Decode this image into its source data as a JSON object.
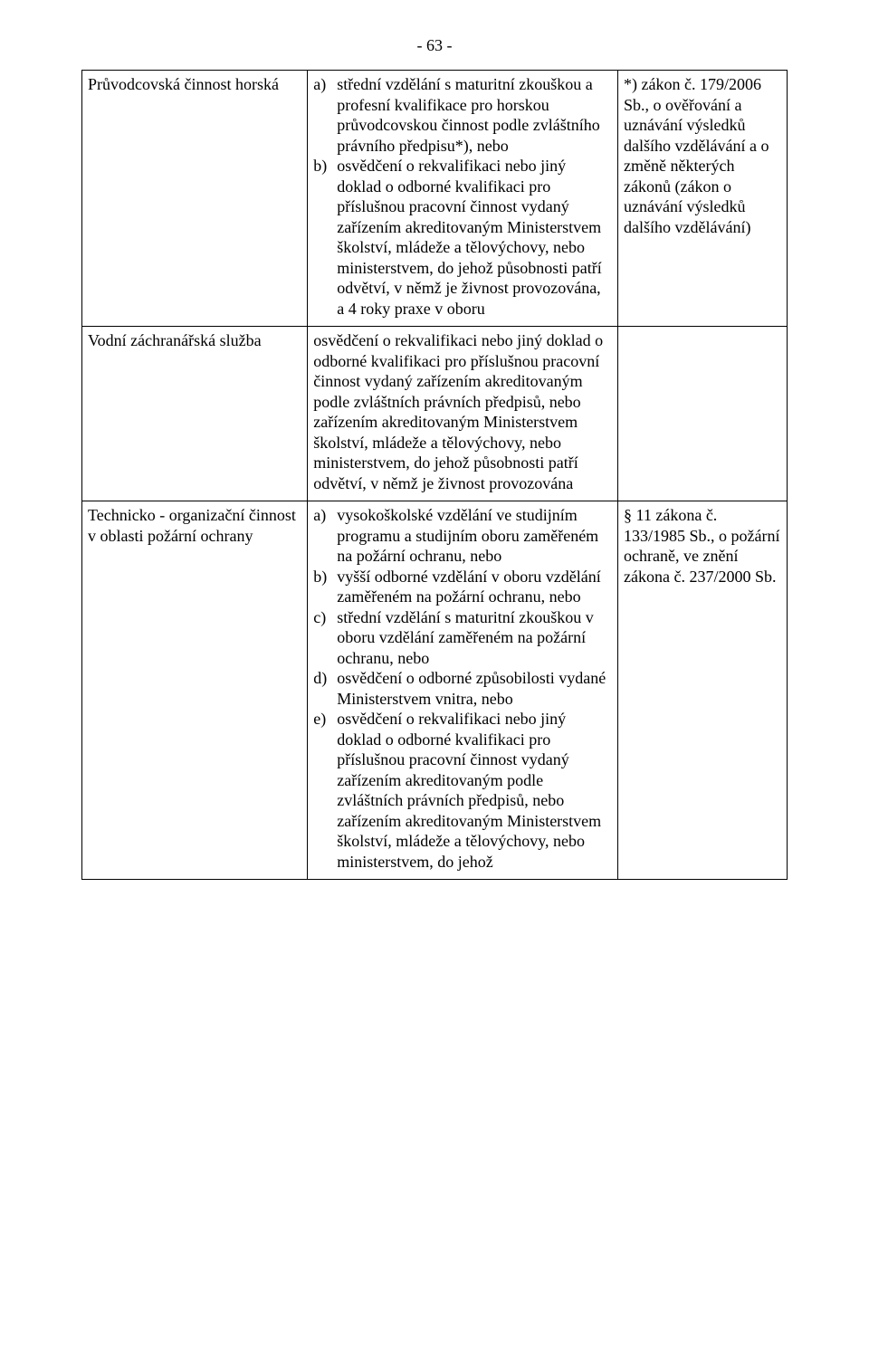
{
  "page_number": "- 63 -",
  "rows": [
    {
      "col1": "Průvodcovská činnost horská",
      "col2_type": "list",
      "col2_items": [
        {
          "marker": "a)",
          "text": "střední vzdělání s maturitní zkouškou a profesní kvalifikace pro horskou průvodcovskou činnost podle zvláštního právního předpisu*), nebo"
        },
        {
          "marker": "b)",
          "text": "osvědčení o rekvalifikaci nebo jiný doklad o odborné kvalifikaci pro příslušnou pracovní činnost vydaný zařízením akreditovaným Ministerstvem školství, mládeže a tělovýchovy, nebo ministerstvem, do jehož působnosti patří odvětví, v němž je živnost provozována, a 4 roky praxe v oboru"
        }
      ],
      "col3": "*) zákon č. 179/2006 Sb., o ověřování a uznávání výsledků dalšího vzdělávání a o změně některých zákonů  (zákon o uznávání výsledků dalšího vzdělávání)"
    },
    {
      "col1": "Vodní záchranářská služba",
      "col2_type": "plain",
      "col2_plain": "osvědčení o rekvalifikaci nebo jiný doklad o odborné kvalifikaci pro příslušnou pracovní činnost vydaný zařízením akreditovaným podle zvláštních právních předpisů, nebo zařízením akreditovaným Ministerstvem školství, mládeže a tělovýchovy, nebo ministerstvem, do jehož působnosti patří odvětví, v němž je živnost provozována",
      "col3": ""
    },
    {
      "col1": "Technicko - organizační činnost v oblasti požární ochrany",
      "col2_type": "list",
      "col2_items": [
        {
          "marker": "a)",
          "text": "vysokoškolské vzdělání ve studijním programu a studijním oboru zaměřeném na požární ochranu, nebo"
        },
        {
          "marker": "b)",
          "text": "vyšší odborné vzdělání v oboru vzdělání zaměřeném na požární ochranu, nebo"
        },
        {
          "marker": "c)",
          "text": "střední vzdělání s maturitní zkouškou v oboru vzdělání zaměřeném na požární ochranu, nebo"
        },
        {
          "marker": "d)",
          "text": "osvědčení o odborné způsobilosti vydané Ministerstvem vnitra, nebo"
        },
        {
          "marker": "e)",
          "text": "osvědčení o rekvalifikaci nebo jiný doklad o odborné kvalifikaci pro příslušnou pracovní činnost vydaný zařízením akreditovaným podle zvláštních právních předpisů, nebo zařízením akreditovaným Ministerstvem školství, mládeže a tělovýchovy, nebo ministerstvem, do jehož"
        }
      ],
      "col3": "§ 11 zákona č. 133/1985 Sb., o požární ochraně, ve znění zákona č. 237/2000 Sb."
    }
  ]
}
